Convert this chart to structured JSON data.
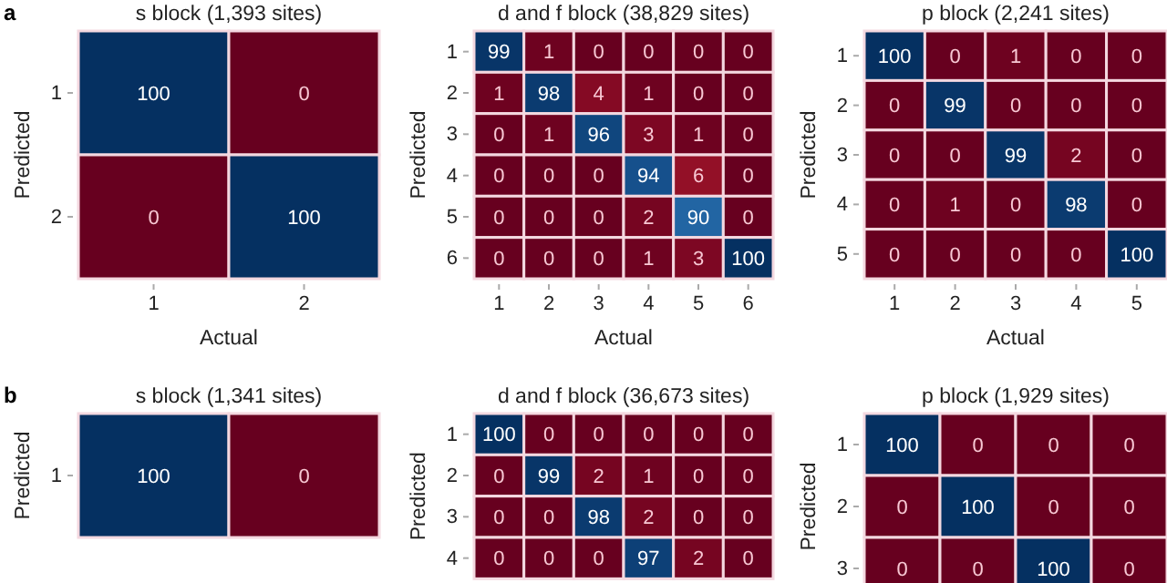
{
  "chart_data": [
    {
      "type": "heatmap",
      "data_labels": true,
      "title": "s block (1,393 sites)",
      "xlabel": "Actual",
      "ylabel": "Predicted",
      "annotations": [
        "a"
      ],
      "categories": [
        "1",
        "2"
      ],
      "y_categories": [
        "1",
        "2"
      ],
      "cells": [
        [
          100,
          0
        ],
        [
          0,
          100
        ]
      ]
    },
    {
      "type": "heatmap",
      "data_labels": true,
      "title": "d and f block (38,829 sites)",
      "xlabel": "Actual",
      "ylabel": "Predicted",
      "categories": [
        "1",
        "2",
        "3",
        "4",
        "5",
        "6"
      ],
      "y_categories": [
        "1",
        "2",
        "3",
        "4",
        "5",
        "6"
      ],
      "cells": [
        [
          99,
          1,
          0,
          0,
          0,
          0
        ],
        [
          1,
          98,
          4,
          1,
          0,
          0
        ],
        [
          0,
          1,
          96,
          3,
          1,
          0
        ],
        [
          0,
          0,
          0,
          94,
          6,
          0
        ],
        [
          0,
          0,
          0,
          2,
          90,
          0
        ],
        [
          0,
          0,
          0,
          1,
          3,
          100
        ]
      ]
    },
    {
      "type": "heatmap",
      "data_labels": true,
      "title": "p block (2,241 sites)",
      "xlabel": "Actual",
      "ylabel": "Predicted",
      "categories": [
        "1",
        "2",
        "3",
        "4",
        "5"
      ],
      "y_categories": [
        "1",
        "2",
        "3",
        "4",
        "5"
      ],
      "cells": [
        [
          100,
          0,
          1,
          0,
          0
        ],
        [
          0,
          99,
          0,
          0,
          0
        ],
        [
          0,
          0,
          99,
          2,
          0
        ],
        [
          0,
          1,
          0,
          98,
          0
        ],
        [
          0,
          0,
          0,
          0,
          100
        ]
      ]
    },
    {
      "type": "heatmap",
      "data_labels": true,
      "title": "s block (1,341 sites)",
      "ylabel": "Predicted",
      "annotations": [
        "b"
      ],
      "tick_labels": "y",
      "categories": [
        null,
        null
      ],
      "y_categories": [
        "1"
      ],
      "cells": [
        [
          100,
          0
        ]
      ]
    },
    {
      "type": "heatmap",
      "data_labels": true,
      "title": "d and f block (36,673 sites)",
      "ylabel": "Predicted",
      "tick_labels": "y",
      "categories": [
        null,
        null,
        null,
        null,
        null,
        null
      ],
      "y_categories": [
        "1",
        "2",
        "3",
        "4"
      ],
      "cells": [
        [
          100,
          0,
          0,
          0,
          0,
          0
        ],
        [
          0,
          99,
          2,
          1,
          0,
          0
        ],
        [
          0,
          0,
          98,
          2,
          0,
          0
        ],
        [
          0,
          0,
          0,
          97,
          2,
          0
        ]
      ]
    },
    {
      "type": "heatmap",
      "data_labels": true,
      "title": "p block (1,929 sites)",
      "ylabel": "Predicted",
      "tick_labels": "y",
      "categories": [
        null,
        null,
        null,
        null
      ],
      "y_categories": [
        "1",
        "2",
        "3"
      ],
      "cells": [
        [
          100,
          0,
          0,
          0
        ],
        [
          0,
          100,
          0,
          0
        ],
        [
          0,
          0,
          100,
          0
        ]
      ]
    }
  ]
}
